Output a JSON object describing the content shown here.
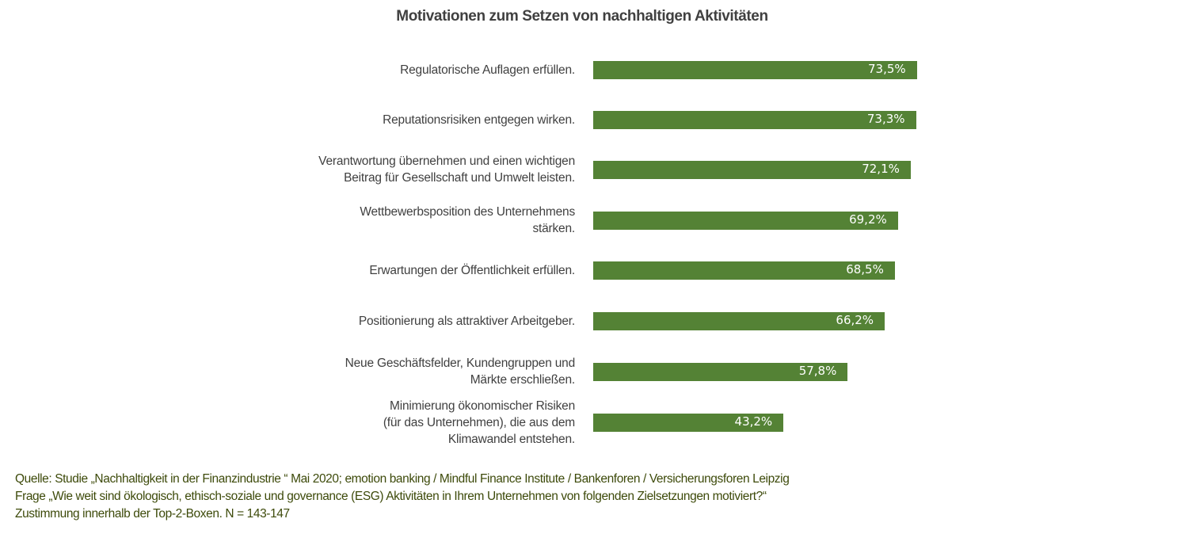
{
  "chart_data": {
    "type": "bar",
    "orientation": "horizontal",
    "title": "Motivationen zum Setzen von nachhaltigen Aktivitäten",
    "categories": [
      "Regulatorische Auflagen erfüllen.",
      "Reputationsrisiken entgegen wirken.",
      "Verantwortung übernehmen und einen wichtigen\nBeitrag für Gesellschaft und Umwelt leisten.",
      "Wettbewerbsposition des Unternehmens\nstärken.",
      "Erwartungen der Öffentlichkeit erfüllen.",
      "Positionierung als attraktiver Arbeitgeber.",
      "Neue Geschäftsfelder, Kundengruppen und\nMärkte erschließen.",
      "Minimierung ökonomischer Risiken\n(für das Unternehmen), die aus dem\nKlimawandel entstehen."
    ],
    "values": [
      73.5,
      73.3,
      72.1,
      69.2,
      68.5,
      66.2,
      57.8,
      43.2
    ],
    "data_labels": [
      "73,5%",
      "73,3%",
      "72,1%",
      "69,2%",
      "68,5%",
      "66,2%",
      "57,8%",
      "43,2%"
    ],
    "unit": "%",
    "xlim": [
      0,
      100
    ],
    "grid": false,
    "legend": "none",
    "bar_color": "#548235"
  },
  "footnote": [
    "Quelle: Studie „Nachhaltigkeit in der Finanzindustrie “ Mai 2020; emotion banking / Mindful Finance Institute / Bankenforen / Versicherungsforen Leipzig",
    "Frage „Wie weit sind ökologisch, ethisch-soziale und governance (ESG) Aktivitäten in Ihrem Unternehmen von folgenden Zielsetzungen motiviert?“",
    "Zustimmung innerhalb der Top-2-Boxen. N = 143-147"
  ]
}
